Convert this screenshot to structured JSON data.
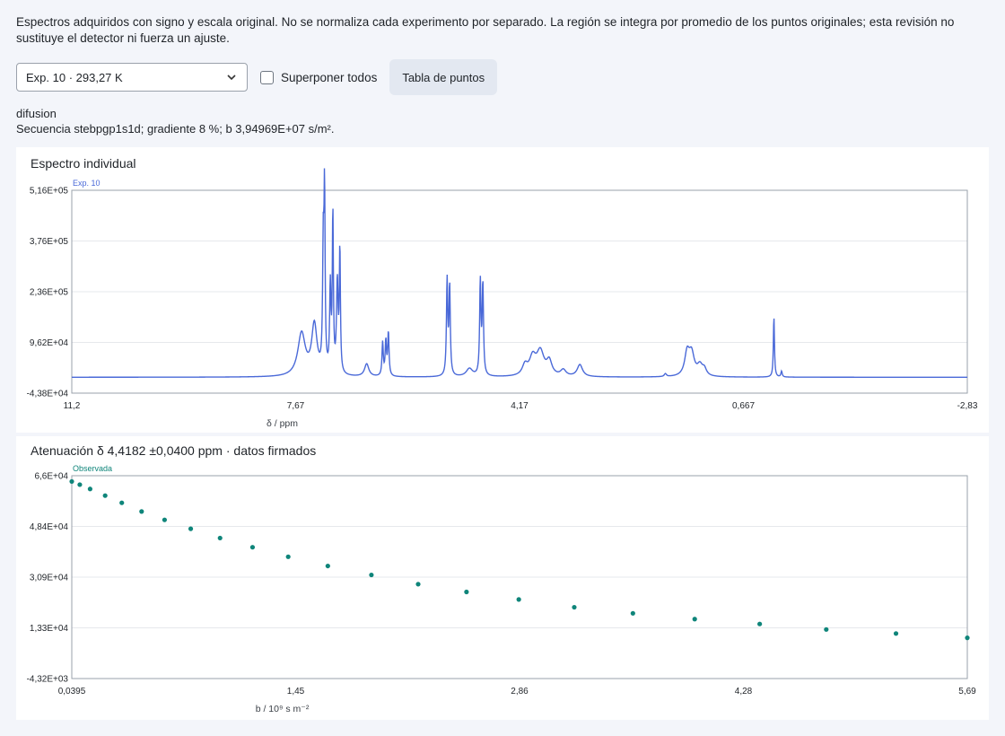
{
  "intro": "Espectros adquiridos con signo y escala original. No se normaliza cada experimento por separado. La región se integra por promedio de los puntos originales; esta revisión no sustituye el detector ni fuerza un ajuste.",
  "controls": {
    "experiment_value": "Exp. 10 · 293,27 K",
    "overlay_label": "Superponer todos",
    "overlay_checked": false,
    "table_button": "Tabla de puntos"
  },
  "meta": {
    "name": "difusion",
    "details": "Secuencia stebpgp1s1d; gradiente 8 %; b 3,94969E+07 s/m²."
  },
  "colors": {
    "spectrum": "#4a69d8",
    "points": "#0f857a",
    "grid": "#e6e8ec",
    "frame": "#9aa1ab"
  },
  "chart_data": [
    {
      "type": "line",
      "title": "Espectro individual",
      "xlabel": "δ / ppm",
      "ylabel": "",
      "x_reversed": true,
      "xlim": [
        11.2,
        -2.83
      ],
      "ylim": [
        -43800,
        516000
      ],
      "x_ticks": [
        "11,2",
        "7,67",
        "4,17",
        "0,667",
        "-2,83"
      ],
      "y_ticks": [
        "5,16E+05",
        "3,76E+05",
        "2,36E+05",
        "9,62E+04",
        "-4,38E+04"
      ],
      "series": [
        {
          "name": "Exp. 10",
          "baseline": 0,
          "peaks": [
            {
              "ppm": 7.6,
              "height": 118000,
              "width": 0.07
            },
            {
              "ppm": 7.4,
              "height": 138000,
              "width": 0.05
            },
            {
              "ppm": 7.26,
              "height": 335000,
              "width": 0.012
            },
            {
              "ppm": 7.24,
              "height": 470000,
              "width": 0.01
            },
            {
              "ppm": 7.15,
              "height": 235000,
              "width": 0.012
            },
            {
              "ppm": 7.11,
              "height": 440000,
              "width": 0.01
            },
            {
              "ppm": 7.04,
              "height": 250000,
              "width": 0.015
            },
            {
              "ppm": 7.0,
              "height": 340000,
              "width": 0.01
            },
            {
              "ppm": 6.58,
              "height": 35000,
              "width": 0.04
            },
            {
              "ppm": 6.33,
              "height": 92000,
              "width": 0.012
            },
            {
              "ppm": 6.28,
              "height": 95000,
              "width": 0.012
            },
            {
              "ppm": 6.24,
              "height": 120000,
              "width": 0.012
            },
            {
              "ppm": 5.32,
              "height": 262000,
              "width": 0.012
            },
            {
              "ppm": 5.28,
              "height": 245000,
              "width": 0.012
            },
            {
              "ppm": 4.97,
              "height": 22000,
              "width": 0.06
            },
            {
              "ppm": 4.8,
              "height": 257000,
              "width": 0.012
            },
            {
              "ppm": 4.76,
              "height": 250000,
              "width": 0.012
            },
            {
              "ppm": 4.1,
              "height": 28000,
              "width": 0.05
            },
            {
              "ppm": 3.98,
              "height": 48000,
              "width": 0.06
            },
            {
              "ppm": 3.86,
              "height": 66000,
              "width": 0.07
            },
            {
              "ppm": 3.72,
              "height": 38000,
              "width": 0.05
            },
            {
              "ppm": 3.5,
              "height": 17000,
              "width": 0.05
            },
            {
              "ppm": 3.24,
              "height": 33000,
              "width": 0.05
            },
            {
              "ppm": 1.9,
              "height": 8000,
              "width": 0.02
            },
            {
              "ppm": 1.56,
              "height": 62000,
              "width": 0.045
            },
            {
              "ppm": 1.49,
              "height": 60000,
              "width": 0.05
            },
            {
              "ppm": 1.36,
              "height": 28000,
              "width": 0.05
            },
            {
              "ppm": 1.29,
              "height": 18000,
              "width": 0.04
            },
            {
              "ppm": 0.2,
              "height": 167000,
              "width": 0.01
            },
            {
              "ppm": 0.08,
              "height": 16000,
              "width": 0.012
            }
          ]
        }
      ]
    },
    {
      "type": "scatter",
      "title": "Atenuación δ 4,4182 ±0,0400 ppm · datos firmados",
      "xlabel": "b / 10⁹ s m⁻²",
      "ylabel": "",
      "xlim": [
        0.0395,
        5.69
      ],
      "ylim": [
        -4320,
        66000
      ],
      "x_ticks": [
        "0,0395",
        "1,45",
        "2,86",
        "4,28",
        "5,69"
      ],
      "y_ticks": [
        "6,6E+04",
        "4,84E+04",
        "3,09E+04",
        "1,33E+04",
        "-4,32E+03"
      ],
      "series": [
        {
          "name": "Observada",
          "x": [
            0.0395,
            0.09,
            0.155,
            0.25,
            0.355,
            0.48,
            0.625,
            0.79,
            0.975,
            1.18,
            1.405,
            1.655,
            1.93,
            2.225,
            2.53,
            2.86,
            3.21,
            3.58,
            3.97,
            4.38,
            4.8,
            5.24,
            5.69
          ],
          "y": [
            64000,
            62900,
            61400,
            59100,
            56600,
            53600,
            50700,
            47600,
            44400,
            41200,
            37900,
            34700,
            31600,
            28400,
            25700,
            23100,
            20400,
            18300,
            16300,
            14600,
            12700,
            11300,
            9800
          ]
        }
      ]
    }
  ]
}
